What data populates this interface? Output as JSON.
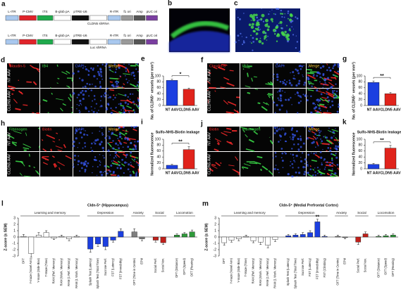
{
  "plasmid": {
    "label": "a",
    "rows": [
      [
        "L-ITR",
        "P-CMV",
        "tTS",
        "B-glob pA",
        "pTRE-U6",
        "CLDN5 shRNA",
        "R-ITR",
        "f1 ori",
        "Amp",
        "pUC ori"
      ],
      [
        "L-ITR",
        "P-CMV",
        "tTS",
        "B-glob pA",
        "pTRE-U6",
        "Luc shRNA",
        "R-ITR",
        "f1 ori",
        "Amp",
        "pUC ori"
      ]
    ]
  },
  "images": [
    {
      "label": "b"
    },
    {
      "label": "c"
    }
  ],
  "micrographs": [
    {
      "label": "d",
      "columns": [
        "Claudin-5",
        "IB4",
        "DAPI",
        "Merge"
      ],
      "rows": [
        "NT AAV",
        "CLDN5 AAV"
      ]
    },
    {
      "label": "f",
      "columns": [
        "Claudin-5",
        "IB4",
        "DAPI",
        "Merge"
      ],
      "rows": [
        "NT AAV",
        "CLDN5 AAV"
      ]
    },
    {
      "label": "h",
      "columns": [
        "Fibrinogen",
        "Biotin",
        "DAPI",
        "Merge"
      ],
      "rows": [
        "NT AAV",
        "CLDN5 AAV"
      ]
    },
    {
      "label": "j",
      "columns": [
        "Biotin",
        "Fibrinogen",
        "DAPI",
        "Merge"
      ],
      "rows": [
        "NT AAV",
        "CLDN5 AAV"
      ]
    }
  ],
  "chart_data": [
    {
      "label": "e",
      "type": "bar",
      "y_label": "No. of CLDN5⁺ vessels (per mm²)",
      "categories": [
        "NT AAV",
        "CLDN5 AAV"
      ],
      "values": [
        85,
        55
      ],
      "errors": [
        4,
        4
      ],
      "colors": [
        "#1c3fe0",
        "#e0231b"
      ],
      "ylim": [
        0,
        100
      ],
      "yticks": [
        0,
        20,
        40,
        60,
        80,
        100
      ],
      "annotation": "*"
    },
    {
      "label": "g",
      "type": "bar",
      "y_label": "No. of CLDN5⁺ vessels (per mm²)",
      "categories": [
        "NT AAV",
        "CLDN5 AAV"
      ],
      "values": [
        78,
        40
      ],
      "errors": [
        5,
        4
      ],
      "colors": [
        "#1c3fe0",
        "#e0231b"
      ],
      "ylim": [
        0,
        100
      ],
      "yticks": [
        0,
        20,
        40,
        60,
        80,
        100
      ],
      "annotation": "**"
    },
    {
      "label": "i",
      "type": "bar",
      "title": "Sulfo-NHS-Biotin leakage",
      "y_label": "Normalized fluorescence",
      "categories": [
        "NT AAV",
        "CLDN5 AAV"
      ],
      "values": [
        12,
        65
      ],
      "errors": [
        3,
        10
      ],
      "colors": [
        "#1c3fe0",
        "#e0231b"
      ],
      "ylim": [
        0,
        100
      ],
      "yticks": [
        0,
        20,
        40,
        60,
        80,
        100
      ],
      "annotation": "**"
    },
    {
      "label": "k",
      "type": "bar",
      "title": "Sulfo-NHS-Biotin leakage",
      "y_label": "Normalized fluorescence",
      "categories": [
        "NT AAV",
        "CLDN5 AAV"
      ],
      "values": [
        15,
        70
      ],
      "errors": [
        3,
        9
      ],
      "colors": [
        "#1c3fe0",
        "#e0231b"
      ],
      "ylim": [
        0,
        100
      ],
      "yticks": [
        0,
        20,
        40,
        60,
        80,
        100
      ],
      "annotation": "**"
    },
    {
      "label": "l",
      "type": "grouped-bar",
      "title": "Cldn-5⁺ (Hippocampus)",
      "y_label": "Z-score (± SEM)",
      "ylim": [
        -3,
        3
      ],
      "yticks": [
        -3,
        -2,
        -1,
        0,
        1,
        2,
        3
      ],
      "groups": [
        {
          "name": "Learning and memory",
          "color": "#ffffff",
          "categories": [
            "OFT",
            "Y-maze (Novel Arm)",
            "Y-maze (Side Bias)",
            "T-Maze (Time)",
            "RAM (Ref. Memory)",
            "RAM (Work. Memory)",
            "RAM (1 Ref. Memory)",
            "RAM (1 Work. Memory)"
          ],
          "values": [
            0.1,
            -2.6,
            0.3,
            0.7,
            -0.2,
            0.1,
            -0.3,
            0.1
          ],
          "errors": [
            0.3,
            0.6,
            0.4,
            0.3,
            0.2,
            0.2,
            0.3,
            0.2
          ]
        },
        {
          "name": "Depression",
          "color": "#1c3fe0",
          "categories": [
            "Splash Test (Latency)",
            "Splash Test (Total Time)",
            "Sucrose Pref.",
            "FST (Latency)",
            "FST (Immobility)"
          ],
          "values": [
            -1.9,
            -1.1,
            -1.5,
            -0.5,
            0.9
          ],
          "errors": [
            0.5,
            0.4,
            0.5,
            0.3,
            0.4
          ]
        },
        {
          "name": "Anxiety",
          "color": "#7f7f7f",
          "categories": [
            "OFT (Time in Centre)",
            "EPM"
          ],
          "values": [
            0.8,
            -0.3
          ],
          "errors": [
            0.5,
            0.3
          ]
        },
        {
          "name": "Social",
          "color": "#c0201b",
          "categories": [
            "Social Pref.",
            "Social Nov."
          ],
          "values": [
            -0.5,
            -0.9
          ],
          "errors": [
            0.3,
            0.3
          ]
        },
        {
          "name": "Locomotion",
          "color": "#2e9a3a",
          "categories": [
            "OFT (Distance)",
            "OFT (Speed)",
            "OFT (Rearing)"
          ],
          "values": [
            0.3,
            0.5,
            0.8
          ],
          "errors": [
            0.2,
            0.2,
            0.3
          ]
        }
      ]
    },
    {
      "label": "m",
      "type": "grouped-bar",
      "title": "Cldn-5⁺ (Medial Prefrontal Cortex)",
      "y_label": "Z-score (± SEM)",
      "ylim": [
        -3,
        3
      ],
      "yticks": [
        -3,
        -2,
        -1,
        0,
        1,
        2,
        3
      ],
      "annotation": "**",
      "groups": [
        {
          "name": "Learning and memory",
          "color": "#ffffff",
          "categories": [
            "OFT",
            "Y-maze (Novel Arm)",
            "Y-maze (Side Bias)",
            "T-Maze (Time)",
            "RAM (Ref. Memory)",
            "RAM (Work. Memory)",
            "RAM (1 Ref. Memory)",
            "RAM (1 Work. Memory)"
          ],
          "values": [
            -0.9,
            -0.5,
            -0.3,
            0.1,
            -0.6,
            -0.8,
            -1.3,
            -0.4
          ],
          "errors": [
            0.4,
            0.3,
            0.3,
            0.2,
            0.3,
            0.4,
            0.4,
            0.3
          ]
        },
        {
          "name": "Depression",
          "color": "#1c3fe0",
          "categories": [
            "Splash Test (Latency)",
            "Splash Test (Total Time)",
            "Sucrose Pref.",
            "FST (Latency)",
            "FST (Immobility)",
            "FST (Climbing)"
          ],
          "values": [
            0.2,
            0.3,
            0.4,
            0.7,
            2.4,
            0.1
          ],
          "errors": [
            0.2,
            0.2,
            0.3,
            0.3,
            0.4,
            0.2
          ]
        },
        {
          "name": "Anxiety",
          "color": "#7f7f7f",
          "categories": [
            "OFT (Time in Centre)",
            "EPM"
          ],
          "values": [
            0.1,
            -0.1
          ],
          "errors": [
            0.2,
            0.2
          ]
        },
        {
          "name": "Social",
          "color": "#c0201b",
          "categories": [
            "Social Pref.",
            "Social Nov."
          ],
          "values": [
            -0.8,
            0.5
          ],
          "errors": [
            0.4,
            0.3
          ]
        },
        {
          "name": "Locomotion",
          "color": "#2e9a3a",
          "categories": [
            "OFT (Distance)",
            "OFT (Speed)",
            "OFT (Rearing)"
          ],
          "values": [
            0.1,
            0.2,
            0.3
          ],
          "errors": [
            0.2,
            0.2,
            0.2
          ]
        }
      ]
    }
  ]
}
